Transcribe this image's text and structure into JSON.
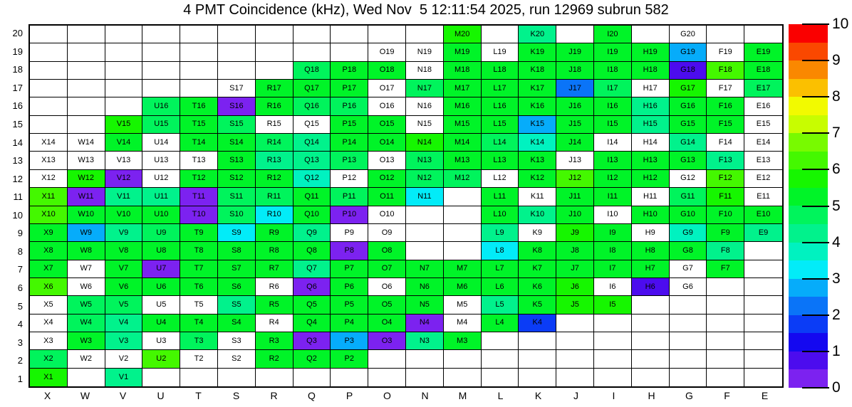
{
  "chart_data": {
    "type": "heatmap",
    "title": "4 PMT Coincidence (kHz), Wed Nov  5 12:11:54 2025, run 12969 subrun 582",
    "x_categories": [
      "X",
      "W",
      "V",
      "U",
      "T",
      "S",
      "R",
      "Q",
      "P",
      "O",
      "N",
      "M",
      "L",
      "K",
      "J",
      "I",
      "H",
      "G",
      "F",
      "E"
    ],
    "y_categories_top_to_bottom": [
      "20",
      "19",
      "18",
      "17",
      "16",
      "15",
      "14",
      "13",
      "12",
      "11",
      "10",
      "9",
      "8",
      "7",
      "6",
      "5",
      "4",
      "3",
      "2",
      "1"
    ],
    "value_range": [
      0,
      10
    ],
    "legend_position": "right",
    "grid": "on",
    "cells": [
      [
        "M20",
        5.7
      ],
      [
        "K20",
        4.3
      ],
      [
        "I20",
        5.2
      ],
      [
        "G20",
        null
      ],
      [
        "O19",
        null
      ],
      [
        "N19",
        null
      ],
      [
        "M19",
        5.2
      ],
      [
        "L19",
        null
      ],
      [
        "K19",
        5.2
      ],
      [
        "J19",
        5.2
      ],
      [
        "I19",
        5.2
      ],
      [
        "H19",
        5.2
      ],
      [
        "G19",
        2.7
      ],
      [
        "F19",
        null
      ],
      [
        "E19",
        5.2
      ],
      [
        "Q18",
        4.7
      ],
      [
        "P18",
        5.2
      ],
      [
        "O18",
        5.2
      ],
      [
        "N18",
        null
      ],
      [
        "M18",
        5.2
      ],
      [
        "L18",
        5.2
      ],
      [
        "K18",
        5.2
      ],
      [
        "J18",
        5.2
      ],
      [
        "I18",
        5.2
      ],
      [
        "H18",
        5.2
      ],
      [
        "G18",
        0.7
      ],
      [
        "F18",
        6.2
      ],
      [
        "E18",
        5.2
      ],
      [
        "S17",
        null
      ],
      [
        "R17",
        5.2
      ],
      [
        "Q17",
        5.2
      ],
      [
        "P17",
        5.2
      ],
      [
        "O17",
        null
      ],
      [
        "N17",
        4.7
      ],
      [
        "M17",
        5.2
      ],
      [
        "L17",
        5.2
      ],
      [
        "K17",
        5.2
      ],
      [
        "J17",
        2.2
      ],
      [
        "I17",
        4.7
      ],
      [
        "H17",
        null
      ],
      [
        "G17",
        5.7
      ],
      [
        "F17",
        null
      ],
      [
        "E17",
        4.7
      ],
      [
        "U16",
        4.7
      ],
      [
        "T16",
        5.2
      ],
      [
        "S16",
        0.3
      ],
      [
        "R16",
        5.2
      ],
      [
        "Q16",
        4.7
      ],
      [
        "P16",
        4.7
      ],
      [
        "O16",
        null
      ],
      [
        "N16",
        null
      ],
      [
        "M16",
        5.2
      ],
      [
        "L16",
        5.2
      ],
      [
        "K16",
        5.2
      ],
      [
        "J16",
        5.2
      ],
      [
        "I16",
        5.2
      ],
      [
        "H16",
        4.3
      ],
      [
        "G16",
        5.2
      ],
      [
        "F16",
        5.2
      ],
      [
        "E16",
        null
      ],
      [
        "V15",
        5.7
      ],
      [
        "U15",
        4.7
      ],
      [
        "T15",
        5.2
      ],
      [
        "S15",
        4.7
      ],
      [
        "R15",
        null
      ],
      [
        "Q15",
        null
      ],
      [
        "P15",
        5.2
      ],
      [
        "O15",
        5.2
      ],
      [
        "N15",
        null
      ],
      [
        "M15",
        5.2
      ],
      [
        "L15",
        5.2
      ],
      [
        "K15",
        2.7
      ],
      [
        "J15",
        5.2
      ],
      [
        "I15",
        5.2
      ],
      [
        "H15",
        4.3
      ],
      [
        "G15",
        5.2
      ],
      [
        "F15",
        5.2
      ],
      [
        "E15",
        null
      ],
      [
        "X14",
        null
      ],
      [
        "W14",
        null
      ],
      [
        "V14",
        5.2
      ],
      [
        "U14",
        null
      ],
      [
        "T14",
        5.2
      ],
      [
        "S14",
        5.2
      ],
      [
        "R14",
        4.7
      ],
      [
        "Q14",
        4.3
      ],
      [
        "P14",
        5.2
      ],
      [
        "O14",
        5.2
      ],
      [
        "N14",
        5.7
      ],
      [
        "M14",
        5.2
      ],
      [
        "L14",
        4.7
      ],
      [
        "K14",
        3.7
      ],
      [
        "J14",
        5.2
      ],
      [
        "I14",
        null
      ],
      [
        "H14",
        null
      ],
      [
        "G14",
        4.3
      ],
      [
        "F14",
        null
      ],
      [
        "E14",
        null
      ],
      [
        "X13",
        null
      ],
      [
        "W13",
        null
      ],
      [
        "V13",
        null
      ],
      [
        "U13",
        null
      ],
      [
        "T13",
        null
      ],
      [
        "S13",
        5.2
      ],
      [
        "R13",
        4.3
      ],
      [
        "Q13",
        4.3
      ],
      [
        "P13",
        4.7
      ],
      [
        "O13",
        null
      ],
      [
        "N13",
        4.7
      ],
      [
        "M13",
        5.2
      ],
      [
        "L13",
        5.2
      ],
      [
        "K13",
        5.2
      ],
      [
        "J13",
        null
      ],
      [
        "I13",
        5.2
      ],
      [
        "H13",
        5.2
      ],
      [
        "G13",
        5.2
      ],
      [
        "F13",
        4.3
      ],
      [
        "E13",
        null
      ],
      [
        "X12",
        null
      ],
      [
        "W12",
        5.7
      ],
      [
        "V12",
        0.3
      ],
      [
        "U12",
        null
      ],
      [
        "T12",
        5.2
      ],
      [
        "S12",
        5.2
      ],
      [
        "R12",
        5.2
      ],
      [
        "Q12",
        3.7
      ],
      [
        "P12",
        null
      ],
      [
        "O12",
        5.2
      ],
      [
        "N12",
        4.7
      ],
      [
        "M12",
        4.7
      ],
      [
        "L12",
        null
      ],
      [
        "K12",
        5.2
      ],
      [
        "J12",
        6.2
      ],
      [
        "I12",
        5.2
      ],
      [
        "H12",
        5.2
      ],
      [
        "G12",
        null
      ],
      [
        "F12",
        6.2
      ],
      [
        "E12",
        null
      ],
      [
        "X11",
        6.2
      ],
      [
        "W11",
        0.3
      ],
      [
        "V11",
        4.3
      ],
      [
        "U11",
        4.3
      ],
      [
        "T11",
        0.3
      ],
      [
        "S11",
        4.7
      ],
      [
        "R11",
        4.7
      ],
      [
        "Q11",
        5.2
      ],
      [
        "P11",
        4.7
      ],
      [
        "O11",
        5.2
      ],
      [
        "N11",
        3.3
      ],
      [
        "L11",
        5.2
      ],
      [
        "K11",
        null
      ],
      [
        "J11",
        5.2
      ],
      [
        "I11",
        5.2
      ],
      [
        "H11",
        null
      ],
      [
        "G11",
        4.7
      ],
      [
        "F11",
        5.7
      ],
      [
        "E11",
        null
      ],
      [
        "X10",
        6.2
      ],
      [
        "W10",
        5.2
      ],
      [
        "V10",
        5.2
      ],
      [
        "U10",
        5.2
      ],
      [
        "T10",
        0.3
      ],
      [
        "S10",
        4.7
      ],
      [
        "R10",
        3.3
      ],
      [
        "Q10",
        5.2
      ],
      [
        "P10",
        0.3
      ],
      [
        "O10",
        null
      ],
      [
        "L10",
        5.2
      ],
      [
        "K10",
        4.3
      ],
      [
        "J10",
        5.2
      ],
      [
        "I10",
        null
      ],
      [
        "H10",
        5.2
      ],
      [
        "G10",
        5.2
      ],
      [
        "F10",
        5.2
      ],
      [
        "E10",
        5.2
      ],
      [
        "X9",
        5.2
      ],
      [
        "W9",
        2.7
      ],
      [
        "V9",
        4.3
      ],
      [
        "U9",
        4.7
      ],
      [
        "T9",
        5.2
      ],
      [
        "S9",
        3.3
      ],
      [
        "R9",
        5.2
      ],
      [
        "Q9",
        4.3
      ],
      [
        "P9",
        null
      ],
      [
        "O9",
        null
      ],
      [
        "L9",
        4.3
      ],
      [
        "K9",
        null
      ],
      [
        "J9",
        5.7
      ],
      [
        "I9",
        5.2
      ],
      [
        "H9",
        null
      ],
      [
        "G9",
        3.7
      ],
      [
        "F9",
        5.2
      ],
      [
        "E9",
        4.3
      ],
      [
        "X8",
        5.2
      ],
      [
        "W8",
        5.2
      ],
      [
        "V8",
        5.2
      ],
      [
        "U8",
        5.2
      ],
      [
        "T8",
        5.2
      ],
      [
        "S8",
        5.2
      ],
      [
        "R8",
        5.2
      ],
      [
        "Q8",
        5.2
      ],
      [
        "P8",
        0.3
      ],
      [
        "O8",
        5.2
      ],
      [
        "L8",
        3.1
      ],
      [
        "K8",
        5.2
      ],
      [
        "J8",
        5.2
      ],
      [
        "I8",
        5.2
      ],
      [
        "H8",
        5.2
      ],
      [
        "G8",
        5.2
      ],
      [
        "F8",
        4.3
      ],
      [
        "X7",
        5.2
      ],
      [
        "W7",
        null
      ],
      [
        "V7",
        5.2
      ],
      [
        "U7",
        0.3
      ],
      [
        "T7",
        5.2
      ],
      [
        "S7",
        5.2
      ],
      [
        "R7",
        5.2
      ],
      [
        "Q7",
        4.3
      ],
      [
        "P7",
        5.2
      ],
      [
        "O7",
        5.2
      ],
      [
        "N7",
        5.2
      ],
      [
        "M7",
        5.2
      ],
      [
        "L7",
        5.2
      ],
      [
        "K7",
        5.2
      ],
      [
        "J7",
        5.2
      ],
      [
        "I7",
        5.2
      ],
      [
        "H7",
        5.2
      ],
      [
        "G7",
        null
      ],
      [
        "F7",
        5.2
      ],
      [
        "X6",
        6.2
      ],
      [
        "W6",
        null
      ],
      [
        "V6",
        5.2
      ],
      [
        "U6",
        5.2
      ],
      [
        "T6",
        5.2
      ],
      [
        "S6",
        5.2
      ],
      [
        "R6",
        null
      ],
      [
        "Q6",
        0.3
      ],
      [
        "P6",
        5.2
      ],
      [
        "O6",
        null
      ],
      [
        "N6",
        5.2
      ],
      [
        "M6",
        5.2
      ],
      [
        "L6",
        5.2
      ],
      [
        "K6",
        5.2
      ],
      [
        "J6",
        5.7
      ],
      [
        "I6",
        null
      ],
      [
        "H6",
        0.7
      ],
      [
        "G6",
        null
      ],
      [
        "X5",
        null
      ],
      [
        "W5",
        4.7
      ],
      [
        "V5",
        4.7
      ],
      [
        "U5",
        null
      ],
      [
        "T5",
        null
      ],
      [
        "S5",
        4.3
      ],
      [
        "R5",
        5.2
      ],
      [
        "Q5",
        5.2
      ],
      [
        "P5",
        5.2
      ],
      [
        "O5",
        5.2
      ],
      [
        "N5",
        5.2
      ],
      [
        "M5",
        null
      ],
      [
        "L5",
        4.3
      ],
      [
        "K5",
        5.2
      ],
      [
        "J5",
        5.7
      ],
      [
        "I5",
        5.7
      ],
      [
        "X4",
        null
      ],
      [
        "W4",
        4.7
      ],
      [
        "V4",
        4.3
      ],
      [
        "U4",
        5.2
      ],
      [
        "T4",
        5.2
      ],
      [
        "S4",
        5.4
      ],
      [
        "R4",
        null
      ],
      [
        "Q4",
        5.2
      ],
      [
        "P4",
        5.2
      ],
      [
        "O4",
        5.2
      ],
      [
        "N4",
        0.3
      ],
      [
        "M4",
        null
      ],
      [
        "L4",
        5.2
      ],
      [
        "K4",
        1.6
      ],
      [
        "X3",
        null
      ],
      [
        "W3",
        5.2
      ],
      [
        "V3",
        4.1
      ],
      [
        "U3",
        null
      ],
      [
        "T3",
        4.7
      ],
      [
        "S3",
        null
      ],
      [
        "R3",
        5.2
      ],
      [
        "Q3",
        0.3
      ],
      [
        "P3",
        2.7
      ],
      [
        "O3",
        0.3
      ],
      [
        "N3",
        4.3
      ],
      [
        "M3",
        5.2
      ],
      [
        "X2",
        4.7
      ],
      [
        "W2",
        null
      ],
      [
        "V2",
        null
      ],
      [
        "U2",
        6.2
      ],
      [
        "T2",
        null
      ],
      [
        "S2",
        null
      ],
      [
        "R2",
        5.2
      ],
      [
        "Q2",
        5.2
      ],
      [
        "P2",
        5.2
      ],
      [
        "X1",
        5.7
      ],
      [
        "V1",
        4.3
      ]
    ],
    "colorbar": {
      "min": 0,
      "max": 10,
      "tick_labels": [
        "0",
        "1",
        "2",
        "3",
        "4",
        "5",
        "6",
        "7",
        "8",
        "9",
        "10"
      ],
      "band_colors_bottom_to_top": [
        "#7c22f0",
        "#4c0cee",
        "#1408f0",
        "#0b3cf6",
        "#0a74f8",
        "#06acfa",
        "#02ecf8",
        "#00f2c0",
        "#01f28c",
        "#00f45c",
        "#00f428",
        "#16f600",
        "#44f800",
        "#78fa00",
        "#c8fd00",
        "#f2fa00",
        "#fbc000",
        "#fa8800",
        "#fa4800",
        "#fa0000"
      ],
      "empty_cell_color": "#ffffff",
      "missing_value_cell_color": "#ffffff"
    }
  }
}
